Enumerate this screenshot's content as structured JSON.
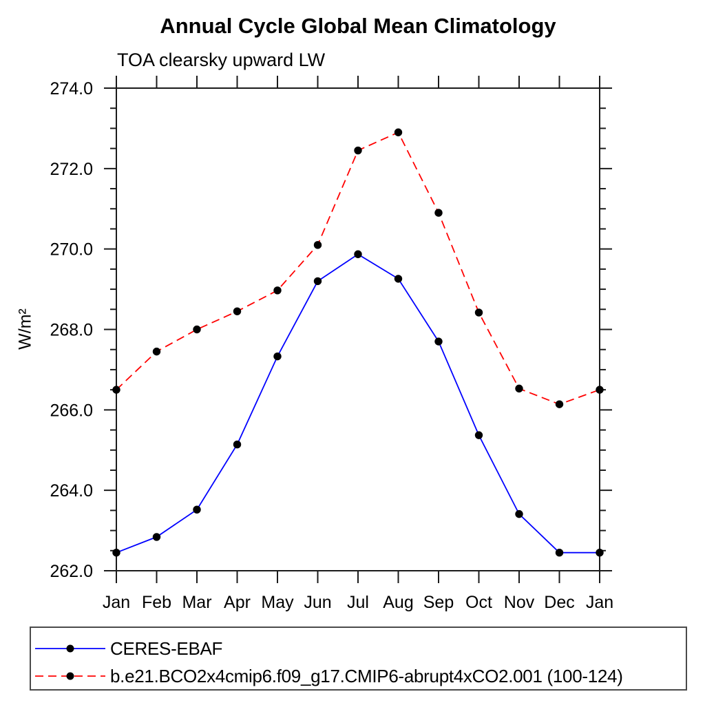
{
  "header": {
    "title": "Annual Cycle Global Mean Climatology",
    "subtitle": "TOA clearsky upward LW"
  },
  "chart_data": {
    "type": "line",
    "title": "Annual Cycle Global Mean Climatology",
    "subtitle": "TOA clearsky upward LW",
    "ylabel": "W/m²",
    "xlabel": "",
    "categories": [
      "Jan",
      "Feb",
      "Mar",
      "Apr",
      "May",
      "Jun",
      "Jul",
      "Aug",
      "Sep",
      "Oct",
      "Nov",
      "Dec",
      "Jan"
    ],
    "series": [
      {
        "name": "CERES-EBAF",
        "color": "#0000ff",
        "line_style": "solid",
        "marker": "filled-circle",
        "marker_color": "#000000",
        "values": [
          262.45,
          262.84,
          263.52,
          265.14,
          267.33,
          269.2,
          269.87,
          269.26,
          267.7,
          265.37,
          263.41,
          262.45,
          262.45
        ]
      },
      {
        "name": "b.e21.BCO2x4cmip6.f09_g17.CMIP6-abrupt4xCO2.001 (100-124)",
        "color": "#ff0000",
        "line_style": "dashed",
        "marker": "filled-circle",
        "marker_color": "#000000",
        "values": [
          266.5,
          267.45,
          268.0,
          268.45,
          268.97,
          270.1,
          272.45,
          272.9,
          270.9,
          268.42,
          266.53,
          266.14,
          266.5
        ]
      }
    ],
    "ylim": [
      262.0,
      274.0
    ],
    "ytick_major_step": 2.0,
    "ytick_minor_step": 0.5,
    "ytick_labels": [
      "262.0",
      "264.0",
      "266.0",
      "268.0",
      "270.0",
      "272.0",
      "274.0"
    ],
    "grid": false,
    "legend_position": "bottom-left",
    "axis_color": "#1a1a1a"
  }
}
